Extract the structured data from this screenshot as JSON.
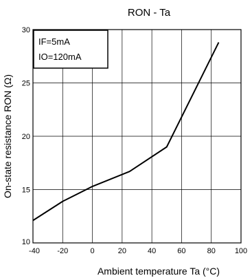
{
  "chart_data": {
    "type": "line",
    "title": "RON - Ta",
    "xlabel": "Ambient temperature Ta (°C)",
    "ylabel": "On-state resistance RON (Ω)",
    "xlim": [
      -40,
      100
    ],
    "ylim": [
      10,
      30
    ],
    "xticks": [
      -40,
      -20,
      0,
      20,
      40,
      60,
      80,
      100
    ],
    "yticks": [
      10,
      15,
      20,
      25,
      30
    ],
    "grid": true,
    "legend_box": [
      "IF=5mA",
      "IO=120mA"
    ],
    "series": [
      {
        "x": [
          -40,
          -20,
          0,
          25,
          50,
          85
        ],
        "y": [
          12.1,
          13.9,
          15.3,
          16.7,
          19.0,
          28.8
        ]
      }
    ],
    "colors": {
      "line": "#000000",
      "grid": "#000000",
      "background": "#ffffff"
    }
  }
}
